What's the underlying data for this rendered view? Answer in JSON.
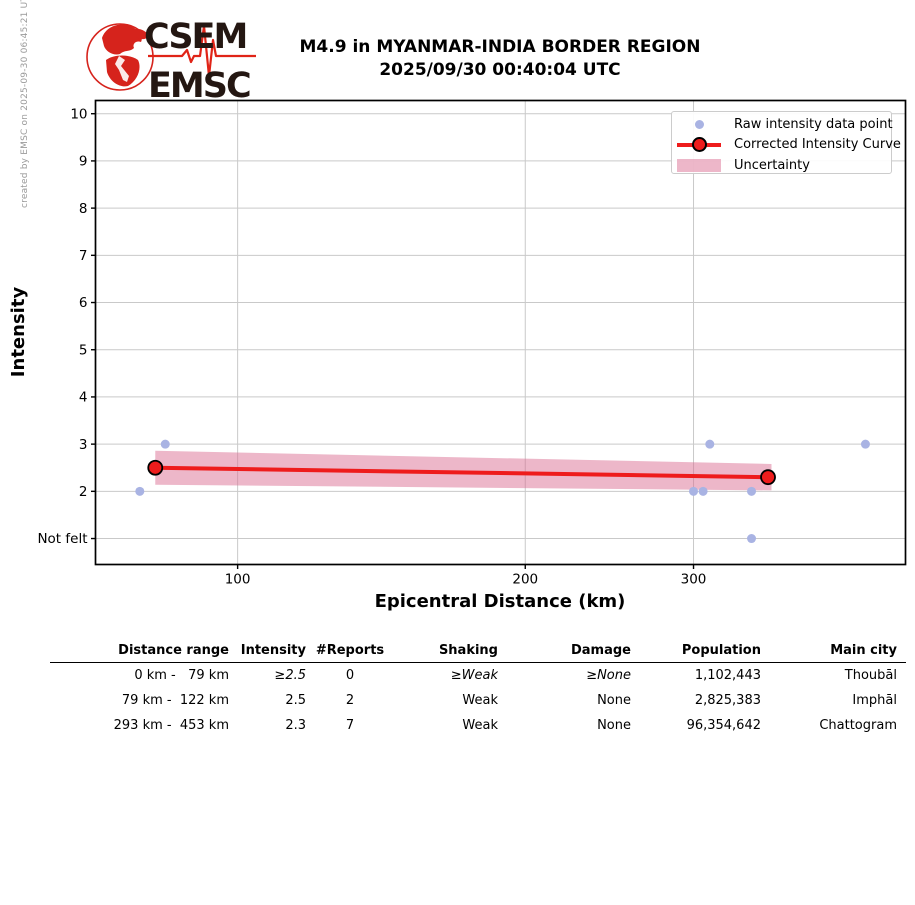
{
  "meta": {
    "credit": "created by EMSC on 2025-09-30 06:45:21 UTC"
  },
  "logo": {
    "line1": "CSEM",
    "line2": "EMSC"
  },
  "header": {
    "title_line1": "M4.9 in MYANMAR-INDIA BORDER REGION",
    "title_line2": "2025/09/30 00:40:04 UTC"
  },
  "chart_data": {
    "type": "line",
    "title": "",
    "xlabel": "Epicentral Distance (km)",
    "ylabel": "Intensity",
    "x_scale": "log",
    "xlim": [
      71,
      500
    ],
    "ylim": [
      0.45,
      10.28
    ],
    "grid": true,
    "xticks": {
      "values": [
        100,
        200,
        300
      ],
      "labels": [
        "100",
        "200",
        "300"
      ]
    },
    "yticks": {
      "values": [
        10,
        9,
        8,
        7,
        6,
        5,
        4,
        3,
        2,
        1
      ],
      "labels": [
        "10",
        "9",
        "8",
        "7",
        "6",
        "5",
        "4",
        "3",
        "2",
        "Not felt"
      ]
    },
    "legend": {
      "position": "upper right",
      "entries": [
        "Raw intensity data point",
        "Corrected Intensity Curve",
        "Uncertainty"
      ]
    },
    "raw_points": {
      "name": "Raw intensity data point",
      "points": [
        [
          79,
          2
        ],
        [
          84,
          3
        ],
        [
          300,
          2
        ],
        [
          307,
          2
        ],
        [
          312,
          3
        ],
        [
          345,
          2
        ],
        [
          345,
          1
        ],
        [
          454,
          3
        ]
      ]
    },
    "corrected_curve": {
      "name": "Corrected Intensity Curve",
      "points": [
        [
          82,
          2.5
        ],
        [
          359,
          2.3
        ]
      ]
    },
    "uncertainty_band": {
      "name": "Uncertainty",
      "x": [
        82,
        362
      ],
      "upper": [
        2.86,
        2.58
      ],
      "lower": [
        2.14,
        2.02
      ]
    },
    "colors": {
      "raw_point": "#a9b3e3",
      "curve": "#ee1c1c",
      "curve_marker_edge": "#000000",
      "band": "rgba(219,112,147,0.5)",
      "grid": "#c9c9c9",
      "spine": "#000000",
      "logo_red": "#d6231c",
      "logo_dark": "#241712"
    }
  },
  "table": {
    "headers": [
      "Distance range",
      "Intensity",
      "#Reports",
      "Shaking",
      "Damage",
      "Population",
      "Main city"
    ],
    "rows": [
      [
        "0 km -   79 km",
        "≥2.5",
        "0",
        "≥Weak",
        "≥None",
        "1,102,443",
        "Thoubāl"
      ],
      [
        "79 km -  122 km",
        "2.5",
        "2",
        "Weak",
        "None",
        "2,825,383",
        "Imphāl"
      ],
      [
        "293 km -  453 km",
        "2.3",
        "7",
        "Weak",
        "None",
        "96,354,642",
        "Chattogram"
      ]
    ]
  }
}
